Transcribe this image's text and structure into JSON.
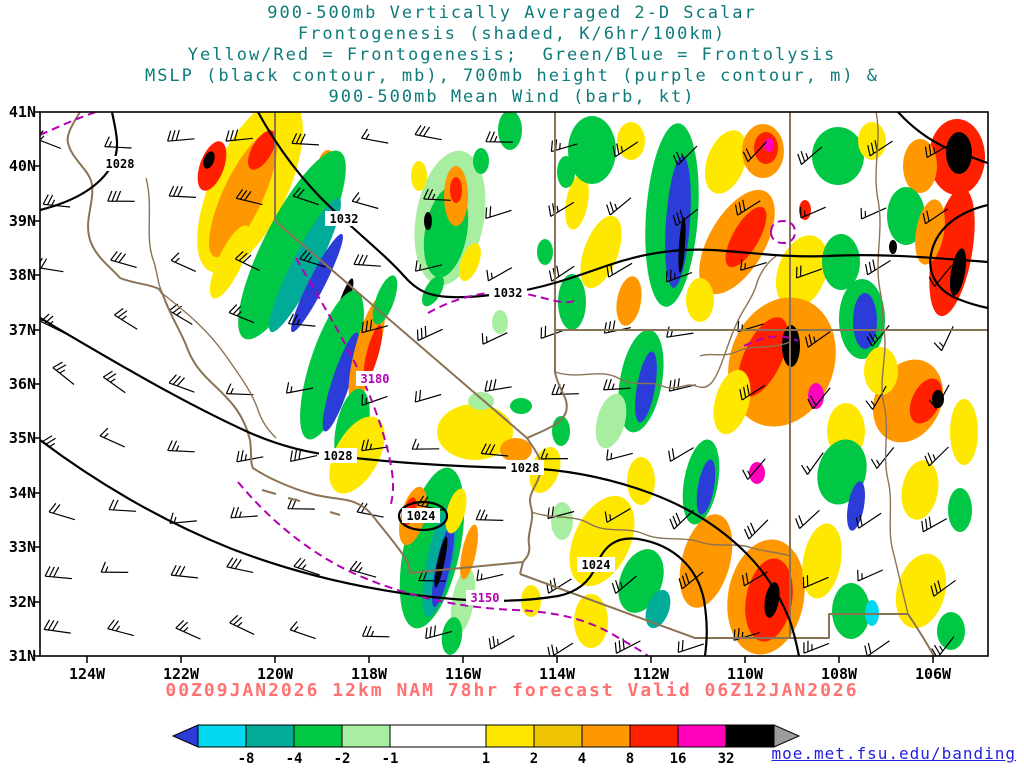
{
  "title": {
    "line1": "900-500mb Vertically Averaged 2-D Scalar",
    "line2": "Frontogenesis (shaded, K/6hr/100km)",
    "line3": "Yellow/Red = Frontogenesis;  Green/Blue = Frontolysis",
    "line4": "MSLP (black contour, mb), 700mb height (purple contour, m) &",
    "line5": "900-500mb Mean Wind (barb, kt)"
  },
  "footer": {
    "caption": "00Z09JAN2026 12km NAM 78hr forecast Valid 06Z12JAN2026",
    "credit": "moe.met.fsu.edu/banding"
  },
  "chart_data": {
    "type": "heatmap",
    "title": "900-500mb Vertically Averaged 2-D Scalar Frontogenesis (shaded, K/6hr/100km)",
    "shaded_field": "frontogenesis; yellow/red = frontogenesis, green/blue = frontolysis",
    "black_contour": "MSLP (mb)",
    "purple_contour": "700mb height (m)",
    "wind_barbs": "900-500mb mean wind (kt)",
    "model": "12km NAM",
    "init_time": "00Z09JAN2026",
    "forecast_hour": "78hr",
    "valid_time": "06Z12JAN2026",
    "x_ticks": [
      "124W",
      "122W",
      "120W",
      "118W",
      "116W",
      "114W",
      "112W",
      "110W",
      "108W",
      "106W"
    ],
    "y_ticks": [
      "41N",
      "40N",
      "39N",
      "38N",
      "37N",
      "36N",
      "35N",
      "34N",
      "33N",
      "32N",
      "31N"
    ],
    "mslp_labels": [
      "1028",
      "1032",
      "1032",
      "1028",
      "1028",
      "1024",
      "1024"
    ],
    "height_labels": [
      "3180",
      "3150"
    ],
    "colorbar": {
      "tick_labels": [
        "-8",
        "-4",
        "-2",
        "-1",
        "1",
        "2",
        "4",
        "8",
        "16",
        "32"
      ],
      "segment_colors": [
        "#00d8f0",
        "#00ab98",
        "#00c845",
        "#a8eea0",
        "#ffffff",
        "#ffe800",
        "#efc400",
        "#ff9800",
        "#ff2000",
        "#ff00bb",
        "#000000"
      ],
      "segment_widths": [
        48,
        48,
        48,
        48,
        96,
        48,
        48,
        48,
        48,
        48,
        48
      ],
      "under_arrow_color": "#2b3cd8",
      "over_arrow_color": "#9c9c9c"
    },
    "colors": {
      "title_text": "#0e7a7a",
      "caption_text": "#ff7272",
      "link_text": "#2420e0",
      "state_border": "#8b7355",
      "mslp_contour": "#000000",
      "height_contour": "#b400b4"
    }
  }
}
